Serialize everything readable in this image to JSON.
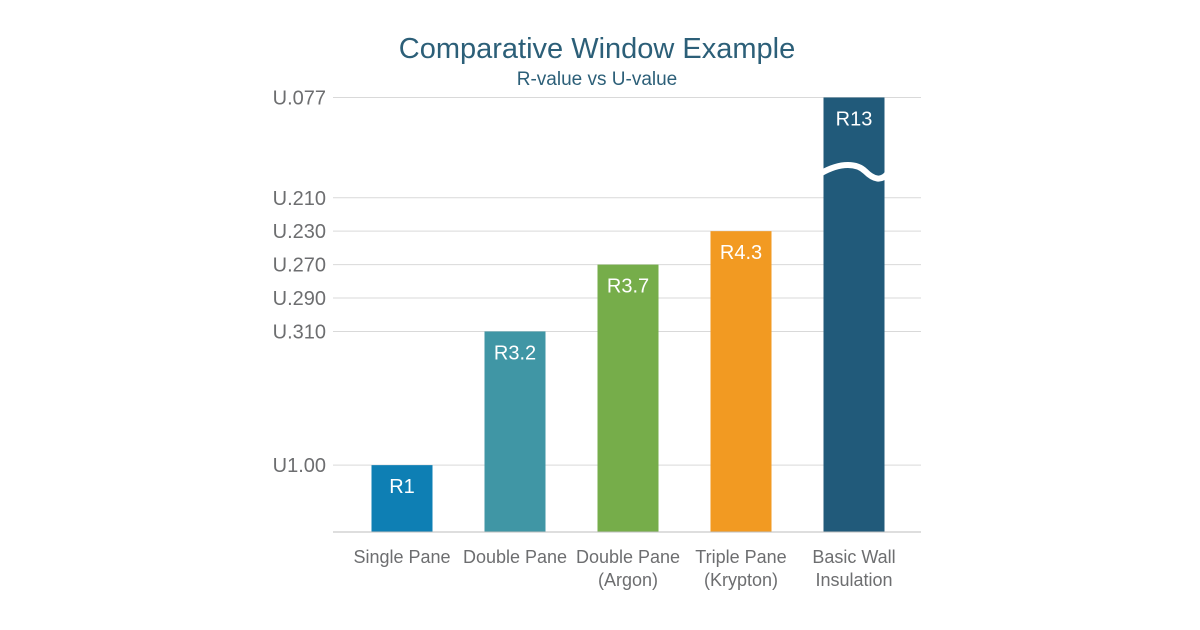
{
  "chart_data": {
    "type": "bar",
    "title": "Comparative Window Example",
    "subtitle": "R-value vs U-value",
    "categories": [
      [
        "Single Pane"
      ],
      [
        "Double Pane"
      ],
      [
        "Double Pane",
        "(Argon)"
      ],
      [
        "Triple Pane",
        "(Krypton)"
      ],
      [
        "Basic Wall",
        "Insulation"
      ]
    ],
    "values": [
      1,
      3.2,
      3.7,
      4.3,
      13
    ],
    "bar_labels": [
      "R1",
      "R3.2",
      "R3.7",
      "R4.3",
      "R13"
    ],
    "u_values": [
      "U1.00",
      "U.310",
      "U.270",
      "U.230",
      "U.077"
    ],
    "bar_colors": [
      "#0e7fb4",
      "#4096a5",
      "#76ad4a",
      "#f29a22",
      "#215a7a"
    ],
    "y_tick_labels": [
      "U1.00",
      "U.310",
      "U.290",
      "U.270",
      "U.230",
      "U.210",
      "U.077"
    ],
    "y_tick_levels": [
      1.0,
      3.0,
      3.5,
      4.0,
      4.5,
      5.0,
      6.5
    ],
    "bar_levels": [
      1.0,
      3.0,
      4.0,
      4.5,
      6.5
    ],
    "axis_break": "Basic Wall Insulation",
    "grid": true,
    "legend": "none"
  }
}
